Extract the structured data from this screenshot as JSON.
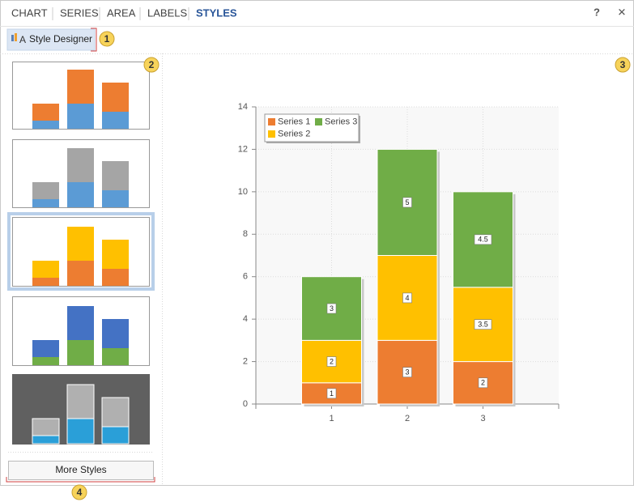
{
  "tabs": [
    "CHART",
    "SERIES",
    "AREA",
    "LABELS",
    "STYLES"
  ],
  "window_buttons": {
    "help": "?",
    "close": "✕"
  },
  "toolbar": {
    "style_designer": "Style Designer"
  },
  "more_styles": "More Styles",
  "callouts": [
    "1",
    "2",
    "3",
    "4"
  ],
  "chart_data": {
    "type": "bar",
    "stacked": true,
    "categories": [
      "1",
      "2",
      "3"
    ],
    "series": [
      {
        "name": "Series 1",
        "color": "#ed7d31",
        "values": [
          1,
          3,
          2
        ]
      },
      {
        "name": "Series 2",
        "color": "#ffc000",
        "values": [
          2,
          4,
          3.5
        ]
      },
      {
        "name": "Series 3",
        "color": "#70ad47",
        "values": [
          3,
          5,
          4.5
        ]
      }
    ],
    "ylim": [
      0,
      14
    ],
    "yticks": [
      0,
      2,
      4,
      6,
      8,
      10,
      12,
      14
    ],
    "grid": true,
    "legend": "top-left",
    "data_labels": true
  }
}
